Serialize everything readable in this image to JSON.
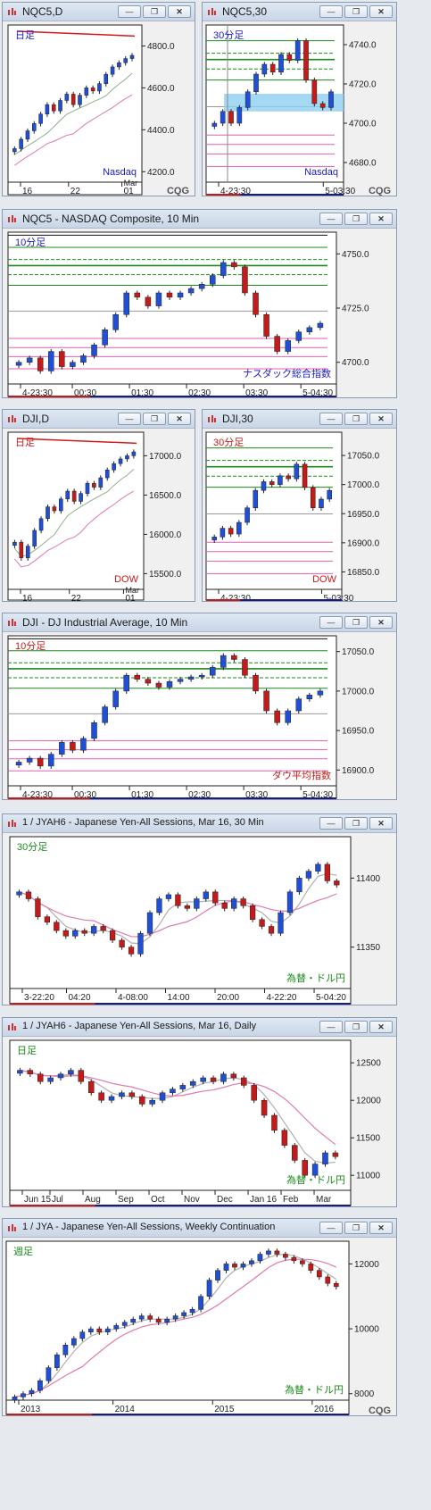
{
  "windows": [
    {
      "id": "w1",
      "title": "NQC5,D",
      "period": "日足",
      "instrument": "Nasdaq",
      "ylabels": [
        "4800.0",
        "4600.0",
        "4400.0",
        "4200.0"
      ],
      "xlabels": [
        "16",
        "22",
        "01"
      ],
      "xsub": "Mar",
      "logo": "CQG"
    },
    {
      "id": "w2",
      "title": "NQC5,30",
      "period": "30分足",
      "instrument": "Nasdaq",
      "ylabels": [
        "4740.0",
        "4720.0",
        "4700.0",
        "4680.0"
      ],
      "xlabels": [
        "4-23:30",
        "5-03:30"
      ],
      "logo": "CQG"
    },
    {
      "id": "w3",
      "title": "NQC5 - NASDAQ Composite, 10 Min",
      "period": "10分足",
      "instrument": "ナスダック総合指数",
      "ylabels": [
        "4750.0",
        "4725.0",
        "4700.0"
      ],
      "xlabels": [
        "4-23:30",
        "00:30",
        "01:30",
        "02:30",
        "03:30",
        "5-04:30"
      ]
    },
    {
      "id": "w4",
      "title": "DJI,D",
      "period": "日足",
      "instrument": "DOW",
      "ylabels": [
        "17000.0",
        "16500.0",
        "16000.0",
        "15500.0"
      ],
      "xlabels": [
        "16",
        "22",
        "01"
      ],
      "xsub": "Mar"
    },
    {
      "id": "w5",
      "title": "DJI,30",
      "period": "30分足",
      "instrument": "DOW",
      "ylabels": [
        "17050.0",
        "17000.0",
        "16950.0",
        "16900.0",
        "16850.0"
      ],
      "xlabels": [
        "4-23:30",
        "5-03:30"
      ]
    },
    {
      "id": "w6",
      "title": "DJI - DJ Industrial Average, 10 Min",
      "period": "10分足",
      "instrument": "ダウ平均指数",
      "ylabels": [
        "17050.0",
        "17000.0",
        "16950.0",
        "16900.0"
      ],
      "xlabels": [
        "4-23:30",
        "00:30",
        "01:30",
        "02:30",
        "03:30",
        "5-04:30"
      ]
    },
    {
      "id": "w7",
      "title": "1 / JYAH6 - Japanese Yen-All Sessions, Mar 16, 30 Min",
      "period": "30分足",
      "instrument": "為替・ドル円",
      "ylabels": [
        "11400",
        "11350"
      ],
      "xlabels": [
        "3-22:20",
        "04:20",
        "4-08:00",
        "14:00",
        "20:00",
        "4-22:20",
        "5-04:20"
      ]
    },
    {
      "id": "w8",
      "title": "1 / JYAH6 - Japanese Yen-All Sessions, Mar 16, Daily",
      "period": "日足",
      "instrument": "為替・ドル円",
      "ylabels": [
        "12500",
        "12000",
        "11500",
        "11000"
      ],
      "xlabels": [
        "Jun 15",
        "Jul",
        "Aug",
        "Sep",
        "Oct",
        "Nov",
        "Dec",
        "Jan 16",
        "Feb",
        "Mar"
      ]
    },
    {
      "id": "w9",
      "title": "1 / JYA - Japanese Yen-All Sessions, Weekly Continuation",
      "period": "週足",
      "instrument": "為替・ドル円",
      "ylabels": [
        "12000",
        "10000",
        "8000"
      ],
      "xlabels": [
        "2013",
        "2014",
        "2015",
        "2016"
      ],
      "logo": "CQG"
    }
  ],
  "chart_data": [
    {
      "type": "candlestick",
      "title": "NQC5,D",
      "ylim": [
        4150,
        4900
      ],
      "close": [
        4310,
        4355,
        4395,
        4430,
        4475,
        4520,
        4490,
        4540,
        4570,
        4520,
        4565,
        4600,
        4585,
        4620,
        4665,
        4700,
        4720,
        4740,
        4755
      ]
    },
    {
      "type": "candlestick",
      "title": "NQC5,30",
      "ylim": [
        4670,
        4750
      ],
      "close": [
        4700,
        4706,
        4700,
        4708,
        4716,
        4725,
        4730,
        4726,
        4735,
        4732,
        4742,
        4722,
        4710,
        4708,
        4716
      ]
    },
    {
      "type": "candlestick",
      "title": "NQC5 - NASDAQ Composite, 10 Min",
      "ylim": [
        4690,
        4760
      ],
      "close": [
        4700,
        4702,
        4696,
        4705,
        4698,
        4700,
        4703,
        4708,
        4715,
        4722,
        4732,
        4730,
        4726,
        4732,
        4730,
        4732,
        4734,
        4736,
        4740,
        4746,
        4744,
        4732,
        4722,
        4712,
        4705,
        4710,
        4714,
        4716,
        4718
      ]
    },
    {
      "type": "candlestick",
      "title": "DJI,D",
      "ylim": [
        15300,
        17300
      ],
      "close": [
        15900,
        15700,
        15850,
        16050,
        16200,
        16350,
        16300,
        16450,
        16550,
        16420,
        16520,
        16650,
        16600,
        16720,
        16820,
        16900,
        16960,
        17000,
        17050
      ]
    },
    {
      "type": "candlestick",
      "title": "DJI,30",
      "ylim": [
        16820,
        17090
      ],
      "close": [
        16910,
        16925,
        16915,
        16935,
        16960,
        16990,
        17005,
        17000,
        17015,
        17010,
        17035,
        16995,
        16960,
        16975,
        16990
      ]
    },
    {
      "type": "candlestick",
      "title": "DJI - DJ Industrial Average, 10 Min",
      "ylim": [
        16880,
        17070
      ],
      "close": [
        16910,
        16915,
        16905,
        16920,
        16935,
        16925,
        16940,
        16960,
        16980,
        17000,
        17020,
        17015,
        17010,
        17005,
        17012,
        17015,
        17018,
        17020,
        17030,
        17045,
        17040,
        17020,
        17000,
        16975,
        16960,
        16975,
        16990,
        16995,
        17000
      ]
    },
    {
      "type": "candlestick",
      "title": "1 / JYAH6 - 30 Min",
      "ylim": [
        11320,
        11430
      ],
      "close": [
        11390,
        11385,
        11372,
        11368,
        11362,
        11358,
        11362,
        11360,
        11365,
        11362,
        11355,
        11350,
        11345,
        11360,
        11375,
        11385,
        11388,
        11380,
        11378,
        11385,
        11390,
        11382,
        11378,
        11385,
        11380,
        11370,
        11365,
        11360,
        11375,
        11390,
        11400,
        11405,
        11410,
        11398,
        11395
      ]
    },
    {
      "type": "candlestick",
      "title": "1 / JYAH6 - Daily",
      "ylim": [
        10800,
        12800
      ],
      "close": [
        12400,
        12350,
        12250,
        12300,
        12350,
        12400,
        12250,
        12100,
        12000,
        12050,
        12100,
        12050,
        11950,
        12000,
        12100,
        12150,
        12200,
        12250,
        12300,
        12250,
        12350,
        12300,
        12200,
        12000,
        11800,
        11600,
        11400,
        11200,
        11000,
        11150,
        11300,
        11250
      ]
    },
    {
      "type": "candlestick",
      "title": "1 / JYA - Weekly Continuation",
      "ylim": [
        7800,
        12700
      ],
      "close": [
        7900,
        8000,
        8100,
        8400,
        8800,
        9200,
        9500,
        9700,
        9900,
        10000,
        9900,
        10000,
        10100,
        10200,
        10300,
        10400,
        10300,
        10200,
        10300,
        10400,
        10500,
        10600,
        11000,
        11500,
        11800,
        12000,
        11900,
        12000,
        12100,
        12300,
        12400,
        12300,
        12200,
        12100,
        12000,
        11800,
        11600,
        11400,
        11300
      ]
    }
  ]
}
